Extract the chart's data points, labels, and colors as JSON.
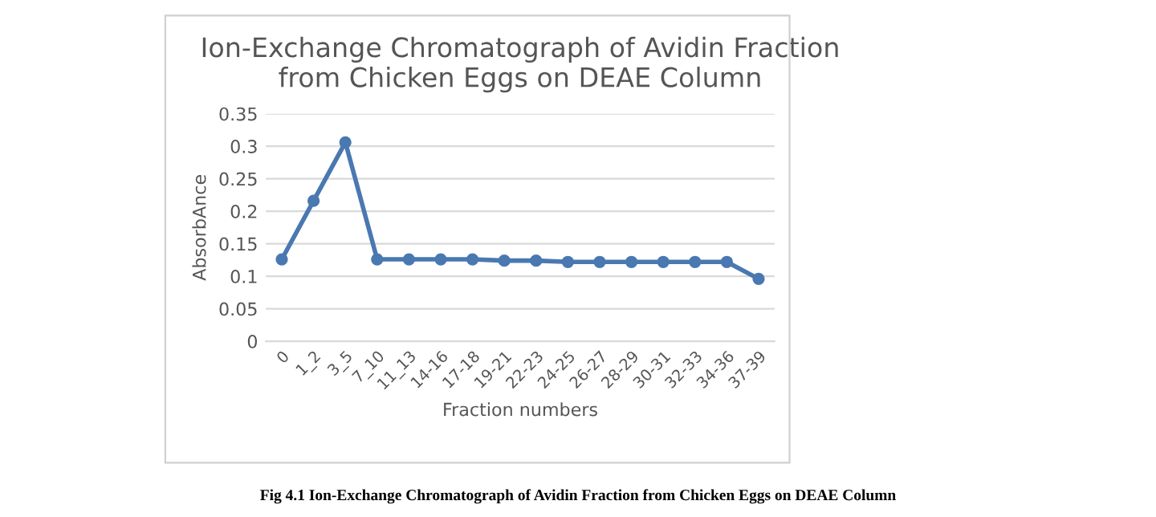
{
  "chart_data": {
    "type": "line",
    "title": "Ion-Exchange Chromatograph of Avidin Fraction\nfrom Chicken Eggs on DEAE Column",
    "xlabel": "Fraction numbers",
    "ylabel": "AbsorbAnce",
    "categories": [
      "0",
      "1_2",
      "3_5",
      "7_10",
      "11_13",
      "14-16",
      "17-18",
      "19-21",
      "22-23",
      "24-25",
      "26-27",
      "28-29",
      "30-31",
      "32-33",
      "34-36",
      "37-39"
    ],
    "series": [
      {
        "color": "#4a78b0",
        "values": [
          0.126,
          0.216,
          0.306,
          0.126,
          0.126,
          0.126,
          0.126,
          0.124,
          0.124,
          0.122,
          0.122,
          0.122,
          0.122,
          0.122,
          0.122,
          0.096
        ]
      }
    ],
    "ylim": [
      0,
      0.35
    ],
    "yticks": [
      {
        "value": 0,
        "label": "0"
      },
      0.05,
      0.1,
      0.15,
      0.2,
      0.25,
      0.3,
      0.35
    ],
    "grid": "y",
    "marker": "circle",
    "line_style": "solid",
    "legend": false,
    "annotations": [
      "Fig 4.1 Ion-Exchange Chromatograph of Avidin Fraction from Chicken Eggs on DEAE Column"
    ]
  }
}
